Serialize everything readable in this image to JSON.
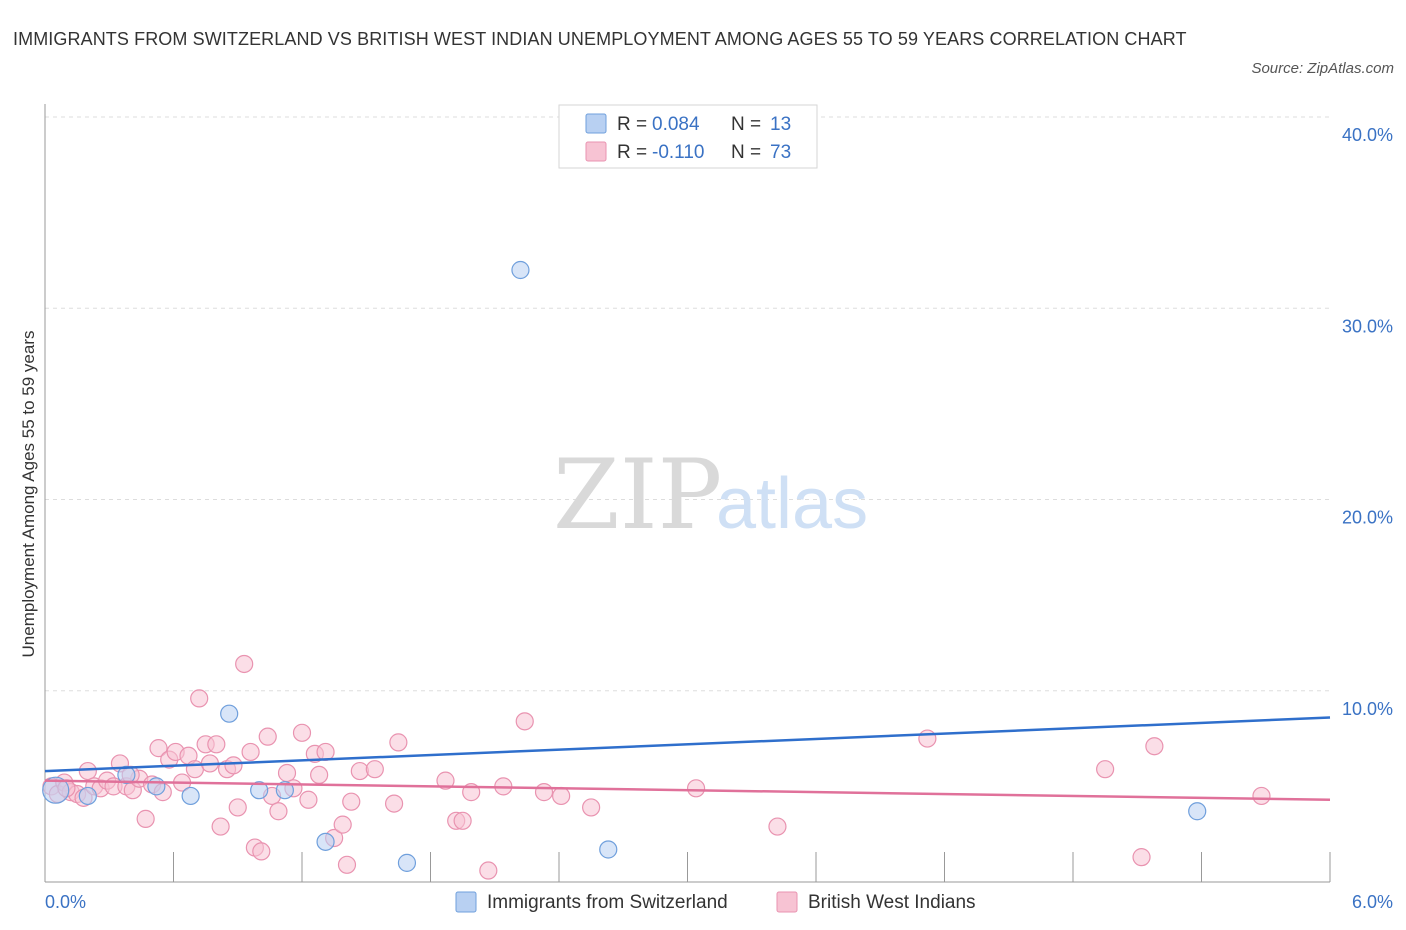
{
  "title": "IMMIGRANTS FROM SWITZERLAND VS BRITISH WEST INDIAN UNEMPLOYMENT AMONG AGES 55 TO 59 YEARS CORRELATION CHART",
  "source": "Source: ZipAtlas.com",
  "watermark": {
    "zip": "ZIP",
    "atlas": "atlas"
  },
  "colors": {
    "blue_fill": "#b8d0f2",
    "blue_stroke": "#6f9fdc",
    "blue_line": "#2f6fcc",
    "pink_fill": "#f7c3d3",
    "pink_stroke": "#e993b0",
    "pink_line": "#e0719a",
    "grid": "#dddddd",
    "tick_text": "#3a72c4"
  },
  "chart_data": {
    "type": "scatter",
    "title": "IMMIGRANTS FROM SWITZERLAND VS BRITISH WEST INDIAN UNEMPLOYMENT AMONG AGES 55 TO 59 YEARS CORRELATION CHART",
    "xlabel": "",
    "ylabel": "Unemployment Among Ages 55 to 59 years",
    "xlim": [
      0,
      6
    ],
    "ylim": [
      0,
      40
    ],
    "x_tick_labels": [
      "0.0%",
      "6.0%"
    ],
    "y_ticks": [
      10,
      20,
      30,
      40
    ],
    "y_tick_labels": [
      "10.0%",
      "20.0%",
      "30.0%",
      "40.0%"
    ],
    "grid": true,
    "legend_position": "top-center",
    "series": [
      {
        "name": "Immigrants from Switzerland",
        "R": "0.084",
        "N": "13",
        "color": "blue",
        "trend": {
          "x": [
            0,
            6
          ],
          "y": [
            5.8,
            8.6
          ]
        },
        "points": [
          {
            "x": 0.05,
            "y": 4.8,
            "big": true
          },
          {
            "x": 0.2,
            "y": 4.5
          },
          {
            "x": 0.38,
            "y": 5.6
          },
          {
            "x": 0.52,
            "y": 5.0
          },
          {
            "x": 0.68,
            "y": 4.5
          },
          {
            "x": 0.86,
            "y": 8.8
          },
          {
            "x": 1.0,
            "y": 4.8
          },
          {
            "x": 1.12,
            "y": 4.8
          },
          {
            "x": 1.31,
            "y": 2.1
          },
          {
            "x": 1.69,
            "y": 1.0
          },
          {
            "x": 2.22,
            "y": 32.0
          },
          {
            "x": 2.63,
            "y": 1.7
          },
          {
            "x": 5.38,
            "y": 3.7
          }
        ]
      },
      {
        "name": "British West Indians",
        "R": "-0.110",
        "N": "73",
        "color": "pink",
        "trend": {
          "x": [
            0,
            6
          ],
          "y": [
            5.3,
            4.3
          ]
        },
        "points": [
          {
            "x": 0.03,
            "y": 5.0
          },
          {
            "x": 0.06,
            "y": 4.6
          },
          {
            "x": 0.09,
            "y": 5.2
          },
          {
            "x": 0.12,
            "y": 4.7
          },
          {
            "x": 0.15,
            "y": 4.6
          },
          {
            "x": 0.18,
            "y": 4.4
          },
          {
            "x": 0.2,
            "y": 5.8
          },
          {
            "x": 0.23,
            "y": 5.0
          },
          {
            "x": 0.26,
            "y": 4.9
          },
          {
            "x": 0.29,
            "y": 5.3
          },
          {
            "x": 0.32,
            "y": 5.0
          },
          {
            "x": 0.35,
            "y": 6.2
          },
          {
            "x": 0.38,
            "y": 5.0
          },
          {
            "x": 0.41,
            "y": 4.8
          },
          {
            "x": 0.44,
            "y": 5.4
          },
          {
            "x": 0.47,
            "y": 3.3
          },
          {
            "x": 0.5,
            "y": 5.1
          },
          {
            "x": 0.53,
            "y": 7.0
          },
          {
            "x": 0.55,
            "y": 4.7
          },
          {
            "x": 0.58,
            "y": 6.4
          },
          {
            "x": 0.61,
            "y": 6.8
          },
          {
            "x": 0.64,
            "y": 5.2
          },
          {
            "x": 0.67,
            "y": 6.6
          },
          {
            "x": 0.7,
            "y": 5.9
          },
          {
            "x": 0.72,
            "y": 9.6
          },
          {
            "x": 0.75,
            "y": 7.2
          },
          {
            "x": 0.77,
            "y": 6.2
          },
          {
            "x": 0.8,
            "y": 7.2
          },
          {
            "x": 0.82,
            "y": 2.9
          },
          {
            "x": 0.85,
            "y": 5.9
          },
          {
            "x": 0.88,
            "y": 6.1
          },
          {
            "x": 0.9,
            "y": 3.9
          },
          {
            "x": 0.93,
            "y": 11.4
          },
          {
            "x": 0.96,
            "y": 6.8
          },
          {
            "x": 0.98,
            "y": 1.8
          },
          {
            "x": 1.01,
            "y": 1.6
          },
          {
            "x": 1.04,
            "y": 7.6
          },
          {
            "x": 1.06,
            "y": 4.5
          },
          {
            "x": 1.09,
            "y": 3.7
          },
          {
            "x": 1.13,
            "y": 5.7
          },
          {
            "x": 1.16,
            "y": 4.9
          },
          {
            "x": 1.2,
            "y": 7.8
          },
          {
            "x": 1.23,
            "y": 4.3
          },
          {
            "x": 1.26,
            "y": 6.7
          },
          {
            "x": 1.28,
            "y": 5.6
          },
          {
            "x": 1.31,
            "y": 6.8
          },
          {
            "x": 1.35,
            "y": 2.3
          },
          {
            "x": 1.39,
            "y": 3.0
          },
          {
            "x": 1.41,
            "y": 0.9
          },
          {
            "x": 1.43,
            "y": 4.2
          },
          {
            "x": 1.47,
            "y": 5.8
          },
          {
            "x": 1.54,
            "y": 5.9
          },
          {
            "x": 1.63,
            "y": 4.1
          },
          {
            "x": 1.65,
            "y": 7.3
          },
          {
            "x": 1.87,
            "y": 5.3
          },
          {
            "x": 1.92,
            "y": 3.2
          },
          {
            "x": 1.95,
            "y": 3.2
          },
          {
            "x": 1.99,
            "y": 4.7
          },
          {
            "x": 2.07,
            "y": 0.6
          },
          {
            "x": 2.14,
            "y": 5.0
          },
          {
            "x": 2.24,
            "y": 8.4
          },
          {
            "x": 2.33,
            "y": 4.7
          },
          {
            "x": 2.41,
            "y": 4.5
          },
          {
            "x": 2.55,
            "y": 3.9
          },
          {
            "x": 3.04,
            "y": 4.9
          },
          {
            "x": 3.42,
            "y": 2.9
          },
          {
            "x": 4.12,
            "y": 7.5
          },
          {
            "x": 4.95,
            "y": 5.9
          },
          {
            "x": 5.12,
            "y": 1.3
          },
          {
            "x": 5.18,
            "y": 7.1
          },
          {
            "x": 5.68,
            "y": 4.5
          },
          {
            "x": 0.1,
            "y": 4.9
          },
          {
            "x": 0.4,
            "y": 5.6
          }
        ]
      }
    ]
  }
}
